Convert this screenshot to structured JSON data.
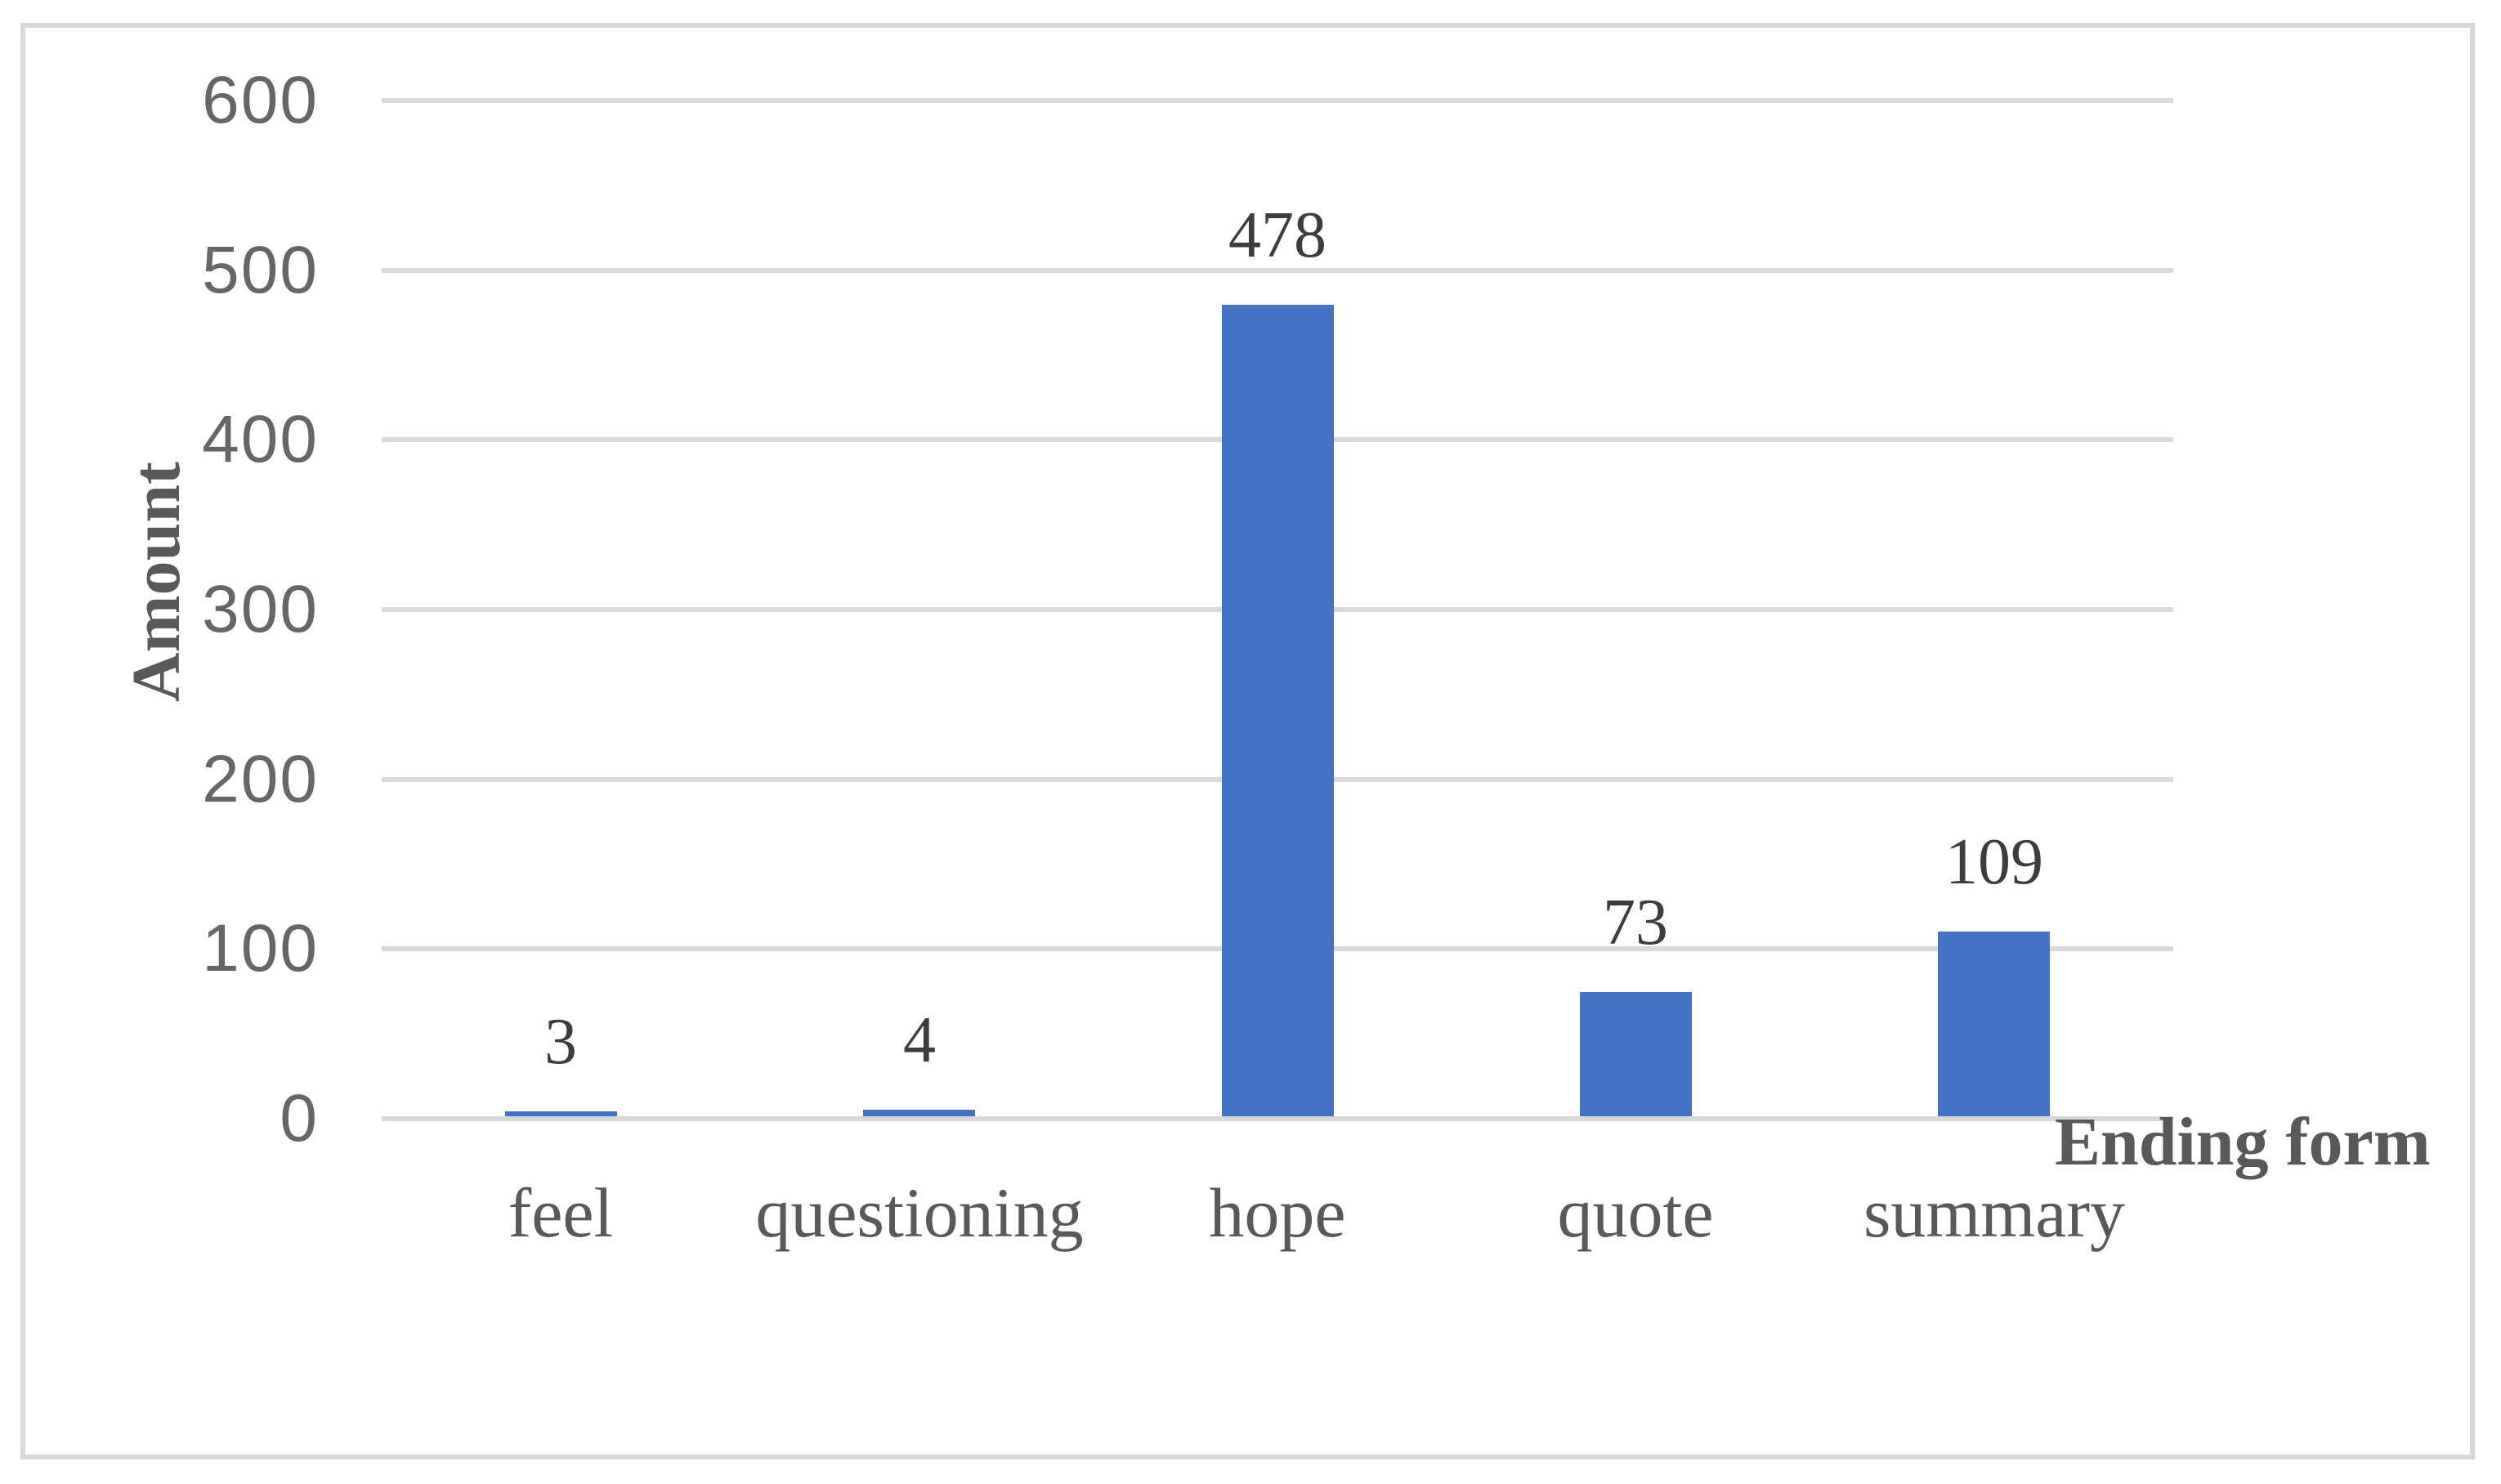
{
  "chart_data": {
    "type": "bar",
    "categories": [
      "feel",
      "questioning",
      "hope",
      "quote",
      "summary"
    ],
    "values": [
      3,
      4,
      478,
      73,
      109
    ],
    "data_labels": [
      "3",
      "4",
      "478",
      "73",
      "109"
    ],
    "title": "",
    "xlabel": "Ending form",
    "ylabel": "Amount",
    "ylim": [
      0,
      600
    ],
    "yticks": [
      0,
      100,
      200,
      300,
      400,
      500,
      600
    ],
    "grid": "horizontal",
    "legend": "none",
    "colors": {
      "bar_fill": "#4472C4",
      "gridline": "#D9D9D9",
      "frame_border": "#D9D9D9",
      "tick_label": "#666666",
      "category_label": "#595959",
      "data_label": "#3D3D3D",
      "axis_title": "#595959",
      "background": "#FFFFFF"
    }
  }
}
